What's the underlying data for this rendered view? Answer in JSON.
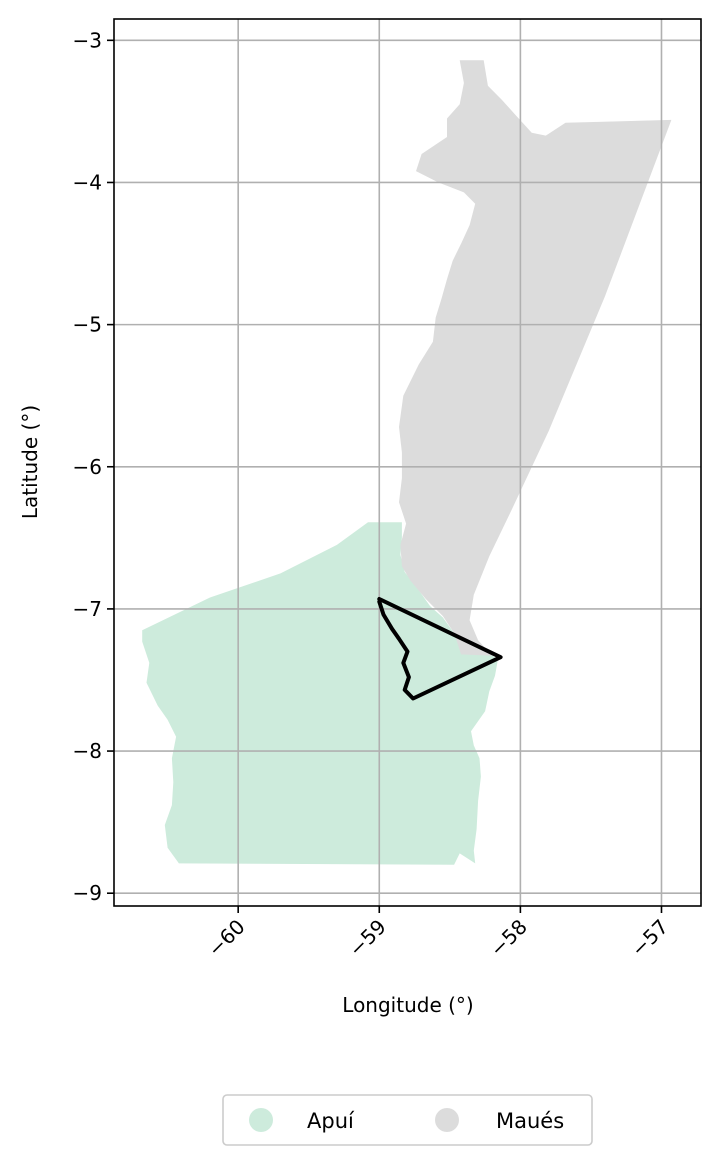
{
  "chart_data": {
    "type": "map",
    "xlabel": "Longitude (°)",
    "ylabel": "Latitude (°)",
    "xlim": [
      -60.88,
      -56.72
    ],
    "ylim": [
      -9.09,
      -2.85
    ],
    "xticks": [
      {
        "value": -60,
        "label": "−60"
      },
      {
        "value": -59,
        "label": "−59"
      },
      {
        "value": -58,
        "label": "−58"
      },
      {
        "value": -57,
        "label": "−57"
      }
    ],
    "yticks": [
      {
        "value": -3,
        "label": "−3"
      },
      {
        "value": -4,
        "label": "−4"
      },
      {
        "value": -5,
        "label": "−5"
      },
      {
        "value": -6,
        "label": "−6"
      },
      {
        "value": -7,
        "label": "−7"
      },
      {
        "value": -8,
        "label": "−8"
      },
      {
        "value": -9,
        "label": "−9"
      }
    ],
    "grid": true,
    "legend_placement": "bottom-center",
    "regions": [
      {
        "name": "Apuí",
        "color": "#cdebdc",
        "polygon": [
          [
            -59.08,
            -6.39
          ],
          [
            -58.84,
            -6.39
          ],
          [
            -58.84,
            -6.5
          ],
          [
            -58.85,
            -6.62
          ],
          [
            -58.82,
            -6.74
          ],
          [
            -58.74,
            -6.84
          ],
          [
            -58.64,
            -6.98
          ],
          [
            -58.55,
            -7.06
          ],
          [
            -58.47,
            -7.17
          ],
          [
            -58.4,
            -7.26
          ],
          [
            -58.23,
            -7.3
          ],
          [
            -58.16,
            -7.36
          ],
          [
            -58.18,
            -7.47
          ],
          [
            -58.22,
            -7.58
          ],
          [
            -58.25,
            -7.72
          ],
          [
            -58.35,
            -7.86
          ],
          [
            -58.33,
            -7.96
          ],
          [
            -58.29,
            -8.05
          ],
          [
            -58.28,
            -8.18
          ],
          [
            -58.3,
            -8.35
          ],
          [
            -58.31,
            -8.55
          ],
          [
            -58.33,
            -8.7
          ],
          [
            -58.32,
            -8.79
          ],
          [
            -58.43,
            -8.72
          ],
          [
            -58.47,
            -8.8
          ],
          [
            -60.42,
            -8.79
          ],
          [
            -60.5,
            -8.68
          ],
          [
            -60.52,
            -8.52
          ],
          [
            -60.47,
            -8.38
          ],
          [
            -60.46,
            -8.22
          ],
          [
            -60.47,
            -8.05
          ],
          [
            -60.44,
            -7.9
          ],
          [
            -60.5,
            -7.78
          ],
          [
            -60.57,
            -7.68
          ],
          [
            -60.65,
            -7.52
          ],
          [
            -60.63,
            -7.38
          ],
          [
            -60.68,
            -7.23
          ],
          [
            -60.68,
            -7.15
          ],
          [
            -60.2,
            -6.92
          ],
          [
            -59.7,
            -6.75
          ],
          [
            -59.3,
            -6.55
          ]
        ]
      },
      {
        "name": "Maués",
        "color": "#dcdcdc",
        "polygon": [
          [
            -58.43,
            -3.14
          ],
          [
            -58.26,
            -3.14
          ],
          [
            -58.23,
            -3.32
          ],
          [
            -58.13,
            -3.42
          ],
          [
            -58.03,
            -3.53
          ],
          [
            -57.92,
            -3.65
          ],
          [
            -57.82,
            -3.67
          ],
          [
            -57.68,
            -3.58
          ],
          [
            -56.93,
            -3.56
          ],
          [
            -57.4,
            -4.8
          ],
          [
            -57.8,
            -5.75
          ],
          [
            -58.07,
            -6.32
          ],
          [
            -58.22,
            -6.63
          ],
          [
            -58.33,
            -6.9
          ],
          [
            -58.36,
            -7.08
          ],
          [
            -58.3,
            -7.22
          ],
          [
            -58.2,
            -7.33
          ],
          [
            -58.42,
            -7.32
          ],
          [
            -58.47,
            -7.17
          ],
          [
            -58.55,
            -7.05
          ],
          [
            -58.67,
            -6.93
          ],
          [
            -58.78,
            -6.8
          ],
          [
            -58.84,
            -6.7
          ],
          [
            -58.85,
            -6.55
          ],
          [
            -58.81,
            -6.4
          ],
          [
            -58.86,
            -6.25
          ],
          [
            -58.84,
            -6.08
          ],
          [
            -58.84,
            -5.9
          ],
          [
            -58.86,
            -5.72
          ],
          [
            -58.83,
            -5.5
          ],
          [
            -58.72,
            -5.28
          ],
          [
            -58.62,
            -5.12
          ],
          [
            -58.6,
            -4.95
          ],
          [
            -58.56,
            -4.82
          ],
          [
            -58.52,
            -4.68
          ],
          [
            -58.48,
            -4.55
          ],
          [
            -58.42,
            -4.43
          ],
          [
            -58.36,
            -4.3
          ],
          [
            -58.32,
            -4.15
          ],
          [
            -58.4,
            -4.07
          ],
          [
            -58.58,
            -4.0
          ],
          [
            -58.74,
            -3.92
          ],
          [
            -58.7,
            -3.8
          ],
          [
            -58.52,
            -3.68
          ],
          [
            -58.52,
            -3.55
          ],
          [
            -58.43,
            -3.45
          ],
          [
            -58.4,
            -3.3
          ]
        ]
      }
    ],
    "boundary": {
      "name": "",
      "color": "#000000",
      "polyline": [
        [
          -59.0,
          -6.93
        ],
        [
          -58.14,
          -7.34
        ],
        [
          -58.76,
          -7.63
        ],
        [
          -58.82,
          -7.57
        ],
        [
          -58.79,
          -7.48
        ],
        [
          -58.83,
          -7.38
        ],
        [
          -58.8,
          -7.3
        ],
        [
          -58.86,
          -7.21
        ],
        [
          -58.91,
          -7.14
        ],
        [
          -58.97,
          -7.04
        ],
        [
          -59.0,
          -6.95
        ]
      ]
    },
    "legend": [
      {
        "label": "Apuí",
        "color": "#cdebdc"
      },
      {
        "label": "Maués",
        "color": "#dcdcdc"
      }
    ]
  }
}
